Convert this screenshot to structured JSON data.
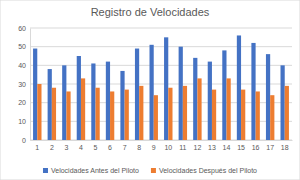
{
  "chart_data": {
    "type": "bar",
    "title": "Registro de Velocidades",
    "categories": [
      "1",
      "2",
      "3",
      "4",
      "5",
      "6",
      "7",
      "8",
      "9",
      "10",
      "11",
      "12",
      "13",
      "14",
      "15",
      "16",
      "17",
      "18"
    ],
    "series": [
      {
        "name": "Velocidades Antes del Piloto",
        "color": "#4472c4",
        "values": [
          49,
          38,
          40,
          45,
          41,
          42,
          37,
          49,
          51,
          55,
          50,
          44,
          42,
          48,
          56,
          52,
          46,
          40
        ]
      },
      {
        "name": "Velocidades Después del Piloto",
        "color": "#ed7d31",
        "values": [
          30,
          28,
          26,
          33,
          28,
          26,
          27,
          29,
          24,
          28,
          29,
          33,
          27,
          33,
          27,
          26,
          24,
          29
        ]
      }
    ],
    "ylim": [
      0,
      60
    ],
    "yticks": [
      0,
      10,
      20,
      30,
      40,
      50,
      60
    ],
    "grid": true,
    "legend": "bottom"
  }
}
